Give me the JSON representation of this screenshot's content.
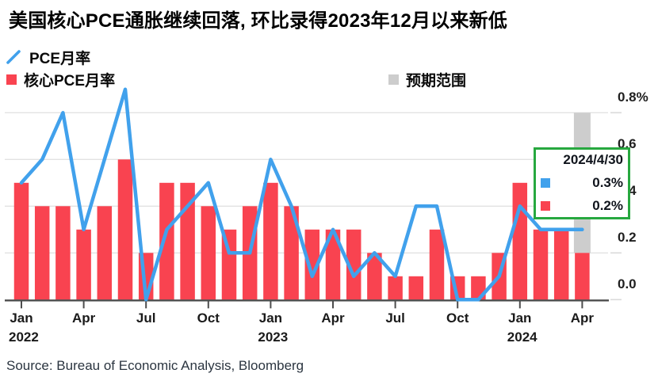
{
  "title": "美国核心PCE通胀继续回落, 环比录得2023年12月以来新低",
  "legend": {
    "line_label": "PCE月率",
    "bar_label": "核心PCE月率",
    "range_label": "预期范围"
  },
  "callout": {
    "date": "2024/4/30",
    "line_value": "0.3%",
    "bar_value": "0.2%"
  },
  "source": "Source: Bureau of Economic Analysis, Bloomberg",
  "colors": {
    "line_blue": "#41A1EC",
    "bar_red": "#F94350",
    "range_gray": "#CDCDCD",
    "callout_green": "#27A83F",
    "gridline": "#E2E2E2",
    "axis": "#4D4D4D",
    "tick_stub": "#DADADA"
  },
  "chart_data": {
    "type": "bar+line",
    "title": "美国核心PCE通胀继续回落, 环比录得2023年12月以来新低",
    "ylabel": "%",
    "ylim": [
      0,
      0.9
    ],
    "grid": true,
    "legend_position": "top-left",
    "categories": [
      "Jan 2022",
      "Feb 2022",
      "Mar 2022",
      "Apr 2022",
      "May 2022",
      "Jun 2022",
      "Jul 2022",
      "Aug 2022",
      "Sep 2022",
      "Oct 2022",
      "Nov 2022",
      "Dec 2022",
      "Jan 2023",
      "Feb 2023",
      "Mar 2023",
      "Apr 2023",
      "May 2023",
      "Jun 2023",
      "Jul 2023",
      "Aug 2023",
      "Sep 2023",
      "Oct 2023",
      "Nov 2023",
      "Dec 2023",
      "Jan 2024",
      "Feb 2024",
      "Mar 2024",
      "Apr 2024"
    ],
    "series": [
      {
        "name": "PCE月率",
        "type": "line",
        "color_key": "line_blue",
        "values": [
          0.5,
          0.6,
          0.8,
          0.3,
          0.6,
          0.9,
          0.0,
          0.3,
          0.4,
          0.5,
          0.2,
          0.2,
          0.6,
          0.4,
          0.1,
          0.3,
          0.1,
          0.2,
          0.1,
          0.4,
          0.4,
          0.0,
          0.0,
          0.1,
          0.4,
          0.3,
          0.3,
          0.3
        ]
      },
      {
        "name": "核心PCE月率",
        "type": "bar",
        "color_key": "bar_red",
        "values": [
          0.5,
          0.4,
          0.4,
          0.3,
          0.4,
          0.6,
          0.2,
          0.5,
          0.5,
          0.4,
          0.3,
          0.4,
          0.5,
          0.4,
          0.3,
          0.3,
          0.3,
          0.2,
          0.1,
          0.1,
          0.3,
          0.1,
          0.1,
          0.2,
          0.5,
          0.3,
          0.3,
          0.2
        ]
      },
      {
        "name": "预期范围",
        "type": "range-bar",
        "color_key": "range_gray",
        "category": "Apr 2024",
        "low": 0.2,
        "high": 0.8
      }
    ],
    "y_ticks": [
      {
        "label": "0.8%",
        "value": 0.8
      },
      {
        "label": "0.6",
        "value": 0.6
      },
      {
        "label": "0.4",
        "value": 0.4
      },
      {
        "label": "0.2",
        "value": 0.2
      },
      {
        "label": "0.0",
        "value": 0.0
      }
    ],
    "x_ticks": [
      {
        "index": 0,
        "label": "Jan",
        "year": "2022"
      },
      {
        "index": 3,
        "label": "Apr"
      },
      {
        "index": 6,
        "label": "Jul"
      },
      {
        "index": 9,
        "label": "Oct"
      },
      {
        "index": 12,
        "label": "Jan",
        "year": "2023"
      },
      {
        "index": 15,
        "label": "Apr"
      },
      {
        "index": 18,
        "label": "Jul"
      },
      {
        "index": 21,
        "label": "Oct"
      },
      {
        "index": 24,
        "label": "Jan",
        "year": "2024"
      },
      {
        "index": 27,
        "label": "Apr"
      }
    ]
  }
}
